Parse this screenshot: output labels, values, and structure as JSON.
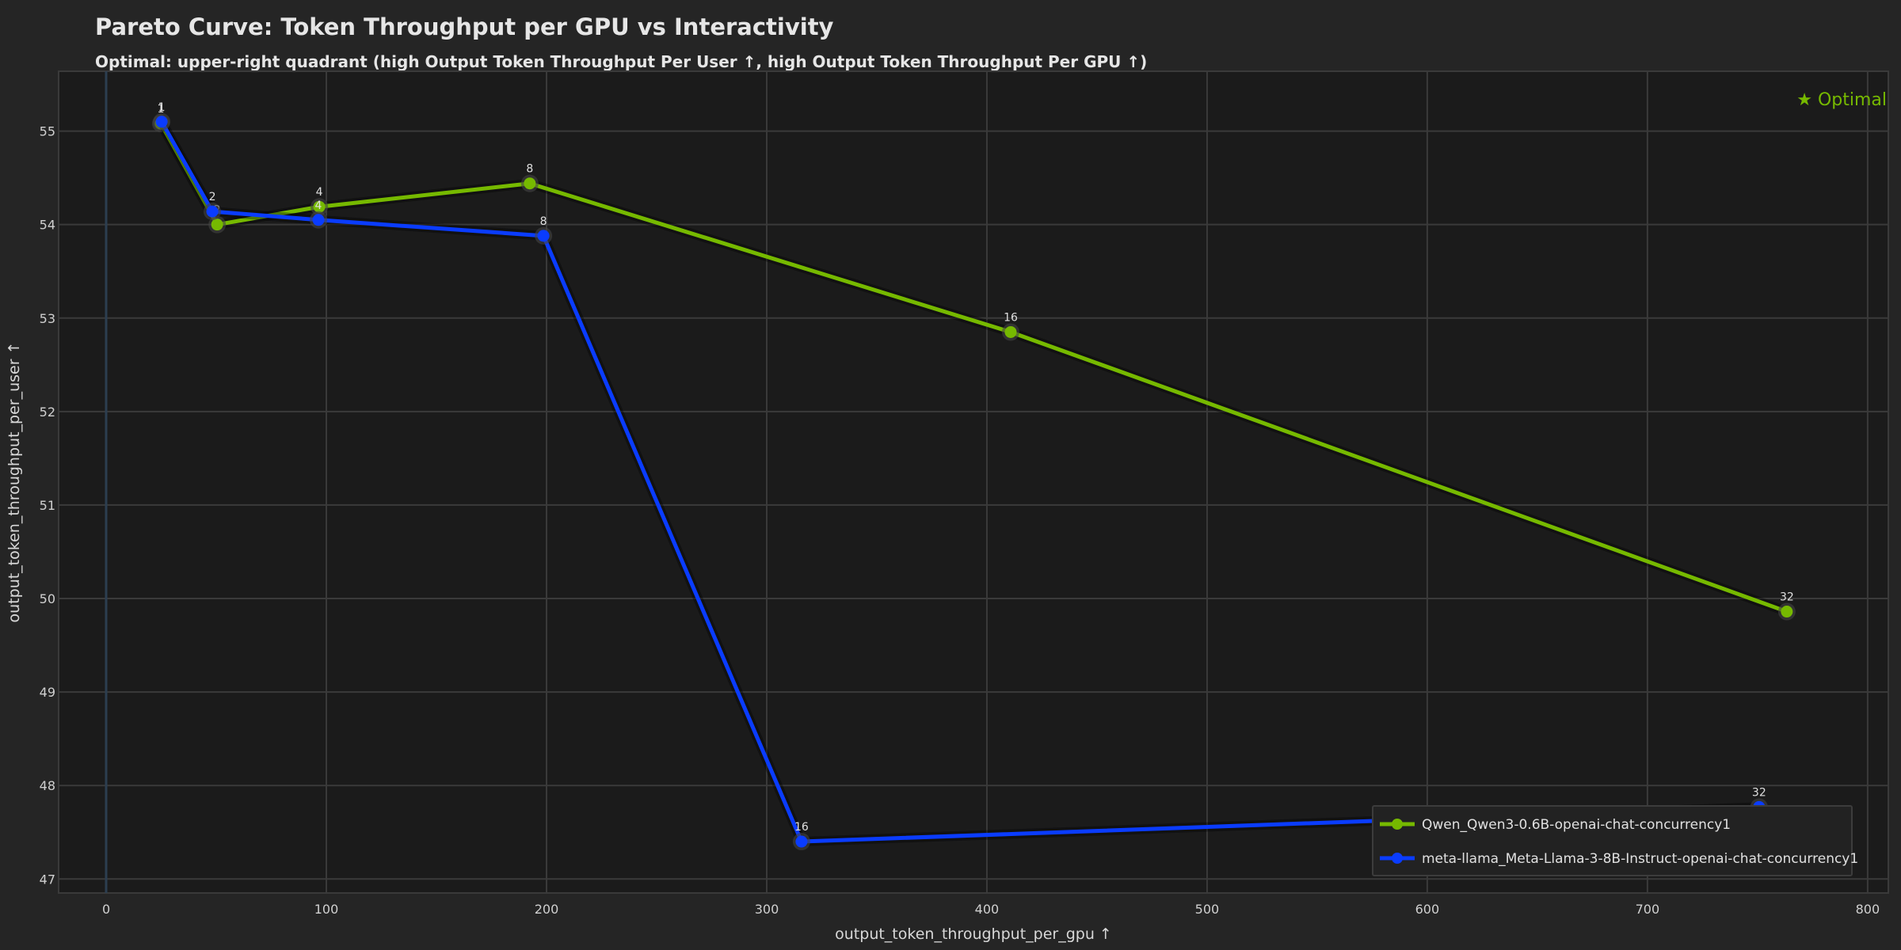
{
  "chart_data": {
    "type": "line",
    "title": "Pareto Curve: Token Throughput per GPU vs Interactivity",
    "subtitle": "Optimal: upper-right quadrant (high Output Token Throughput Per User ↑, high Output Token Throughput Per GPU ↑)",
    "xlabel": "output_token_throughput_per_gpu ↑",
    "ylabel": "output_token_throughput_per_user ↑",
    "xlim": [
      -21.6,
      809.4
    ],
    "ylim": [
      46.85,
      55.64
    ],
    "xticks": [
      0,
      100,
      200,
      300,
      400,
      500,
      600,
      700,
      800
    ],
    "yticks": [
      47,
      48,
      49,
      50,
      51,
      52,
      53,
      54,
      55
    ],
    "grid": true,
    "annotation": "★ Optimal",
    "legend_position": "lower right",
    "series": [
      {
        "name": "Qwen_Qwen3-0.6B-openai-chat-concurrency1",
        "color": "#76b900",
        "points": [
          {
            "label": "1",
            "x": 24.8,
            "y": 55.08
          },
          {
            "label": "2",
            "x": 50.4,
            "y": 54.0
          },
          {
            "label": "4",
            "x": 96.8,
            "y": 54.19
          },
          {
            "label": "8",
            "x": 192.4,
            "y": 54.44
          },
          {
            "label": "16",
            "x": 410.8,
            "y": 52.85
          },
          {
            "label": "32",
            "x": 763.3,
            "y": 49.86
          }
        ]
      },
      {
        "name": "meta-llama_Meta-Llama-3-8B-Instruct-openai-chat-concurrency1",
        "color": "#0a3cff",
        "points": [
          {
            "label": "1",
            "x": 25.2,
            "y": 55.1
          },
          {
            "label": "2",
            "x": 48.2,
            "y": 54.14
          },
          {
            "label": "4",
            "x": 96.4,
            "y": 54.05
          },
          {
            "label": "8",
            "x": 198.6,
            "y": 53.88
          },
          {
            "label": "16",
            "x": 315.8,
            "y": 47.4
          },
          {
            "label": "32",
            "x": 750.7,
            "y": 47.77
          }
        ]
      }
    ]
  },
  "colors": {
    "background": "#252525",
    "plot_background": "#1b1b1b",
    "grid": "#3a3a3a",
    "accent": "#76b900"
  }
}
